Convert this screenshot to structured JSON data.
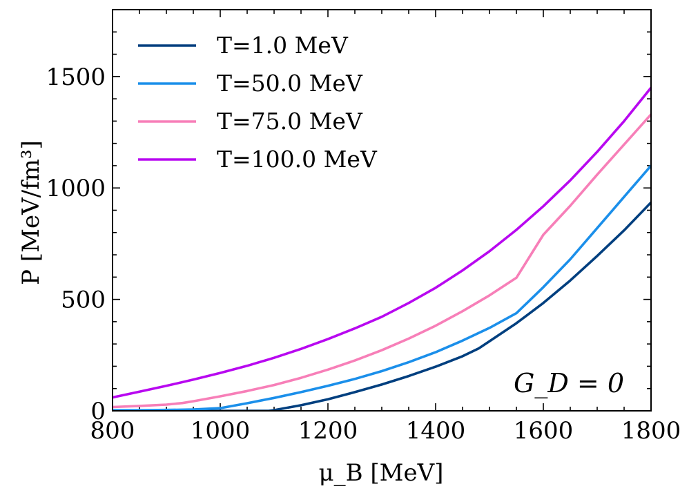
{
  "chart_data": {
    "type": "line",
    "title": "",
    "xlabel": "μ_B [MeV]",
    "ylabel": "P [MeV/fm³]",
    "xlim": [
      800,
      1800
    ],
    "ylim": [
      0,
      1800
    ],
    "x_ticks": [
      800,
      1000,
      1200,
      1400,
      1600,
      1800
    ],
    "y_ticks": [
      0,
      500,
      1000,
      1500
    ],
    "x_tick_labels": [
      "800",
      "1000",
      "1200",
      "1400",
      "1600",
      "1800"
    ],
    "y_tick_labels": [
      "0",
      "500",
      "1000",
      "1500"
    ],
    "x_minor_step": 50,
    "y_minor_step": 100,
    "legend_position": "top-left",
    "annotation": "G_D = 0",
    "series": [
      {
        "name": "T=1.0 MeV",
        "color": "#003f7f",
        "x": [
          800,
          1000,
          1090,
          1100,
          1150,
          1200,
          1250,
          1300,
          1350,
          1400,
          1450,
          1480,
          1500,
          1550,
          1600,
          1650,
          1700,
          1750,
          1800
        ],
        "y": [
          0,
          0,
          0,
          3,
          25,
          52,
          84,
          118,
          156,
          198,
          245,
          280,
          312,
          393,
          484,
          585,
          695,
          810,
          935
        ]
      },
      {
        "name": "T=50.0 MeV",
        "color": "#1b8fea",
        "x": [
          800,
          850,
          900,
          950,
          1000,
          1050,
          1100,
          1150,
          1200,
          1250,
          1300,
          1350,
          1400,
          1450,
          1500,
          1550,
          1600,
          1650,
          1700,
          1750,
          1800
        ],
        "y": [
          3,
          3,
          4,
          6,
          12,
          34,
          58,
          84,
          112,
          143,
          178,
          218,
          263,
          315,
          372,
          438,
          555,
          680,
          820,
          960,
          1100
        ]
      },
      {
        "name": "T=75.0 MeV",
        "color": "#f77fb8",
        "x": [
          800,
          850,
          900,
          930,
          950,
          1000,
          1050,
          1100,
          1150,
          1200,
          1250,
          1300,
          1350,
          1400,
          1450,
          1500,
          1550,
          1600,
          1650,
          1700,
          1750,
          1800
        ],
        "y": [
          17,
          22,
          28,
          35,
          43,
          65,
          89,
          116,
          148,
          185,
          226,
          272,
          324,
          382,
          447,
          518,
          597,
          790,
          920,
          1060,
          1195,
          1330
        ]
      },
      {
        "name": "T=100.0 MeV",
        "color": "#b808f0",
        "x": [
          800,
          850,
          900,
          950,
          1000,
          1050,
          1100,
          1150,
          1200,
          1250,
          1300,
          1350,
          1400,
          1450,
          1500,
          1550,
          1600,
          1650,
          1700,
          1750,
          1800
        ],
        "y": [
          60,
          86,
          112,
          140,
          170,
          202,
          238,
          278,
          322,
          370,
          422,
          484,
          552,
          630,
          716,
          812,
          918,
          1034,
          1162,
          1300,
          1450
        ]
      }
    ]
  }
}
